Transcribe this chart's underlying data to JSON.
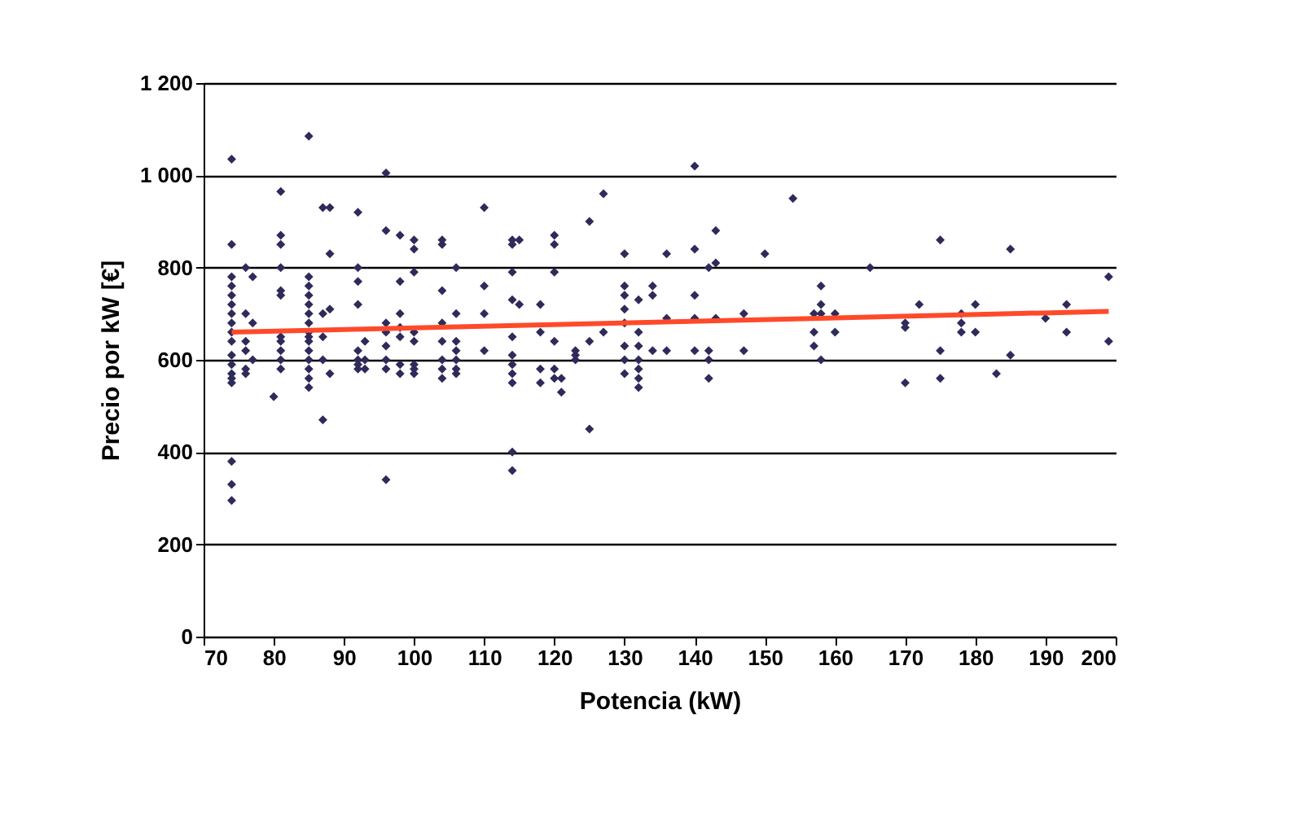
{
  "chart_data": {
    "type": "scatter",
    "xlabel": "Potencia (kW)",
    "ylabel": "Precio por kW [€]",
    "xlim": [
      70,
      200
    ],
    "xticks": [
      70,
      80,
      90,
      100,
      110,
      120,
      130,
      140,
      150,
      160,
      170,
      180,
      190,
      200
    ],
    "ylim": [
      0,
      1200
    ],
    "yticks": [
      0,
      200,
      400,
      600,
      800,
      {
        "value": 1000,
        "label": "1 000"
      },
      {
        "value": 1200,
        "label": "1 200"
      }
    ],
    "grid": "y",
    "series": [
      {
        "marker": "diamond",
        "color": "#2e2a5a",
        "x": [
          74,
          74,
          74,
          74,
          74,
          74,
          74,
          74,
          74,
          74,
          74,
          74,
          74,
          74,
          74,
          74,
          74,
          74,
          76,
          76,
          76,
          76,
          76,
          76,
          77,
          77,
          77,
          80,
          81,
          81,
          81,
          81,
          81,
          81,
          81,
          81,
          81,
          81,
          81,
          85,
          85,
          85,
          85,
          85,
          85,
          85,
          85,
          85,
          85,
          85,
          85,
          85,
          85,
          85,
          87,
          87,
          87,
          87,
          87,
          88,
          88,
          88,
          88,
          92,
          92,
          92,
          92,
          92,
          92,
          92,
          92,
          93,
          93,
          93,
          96,
          96,
          96,
          96,
          96,
          96,
          96,
          96,
          98,
          98,
          98,
          98,
          98,
          98,
          98,
          100,
          100,
          100,
          100,
          100,
          100,
          100,
          100,
          104,
          104,
          104,
          104,
          104,
          104,
          104,
          104,
          106,
          106,
          106,
          106,
          106,
          106,
          106,
          110,
          110,
          110,
          110,
          114,
          114,
          114,
          114,
          114,
          114,
          114,
          114,
          114,
          114,
          114,
          115,
          115,
          118,
          118,
          118,
          118,
          120,
          120,
          120,
          120,
          120,
          120,
          121,
          121,
          123,
          123,
          123,
          125,
          125,
          125,
          127,
          127,
          130,
          130,
          130,
          130,
          130,
          130,
          130,
          130,
          132,
          132,
          132,
          132,
          132,
          132,
          132,
          134,
          134,
          134,
          136,
          136,
          136,
          140,
          140,
          140,
          140,
          140,
          142,
          142,
          142,
          142,
          143,
          143,
          143,
          147,
          147,
          150,
          154,
          157,
          157,
          157,
          158,
          158,
          158,
          158,
          160,
          160,
          165,
          170,
          170,
          170,
          172,
          175,
          175,
          175,
          178,
          178,
          178,
          180,
          180,
          183,
          185,
          185,
          190,
          193,
          193,
          199,
          199
        ],
        "values": [
          1035,
          850,
          780,
          760,
          740,
          720,
          700,
          680,
          660,
          640,
          610,
          590,
          570,
          560,
          550,
          380,
          330,
          295,
          800,
          700,
          640,
          620,
          580,
          570,
          780,
          680,
          600,
          520,
          965,
          870,
          850,
          800,
          750,
          740,
          650,
          640,
          620,
          600,
          580,
          1085,
          780,
          760,
          740,
          720,
          700,
          680,
          660,
          650,
          640,
          620,
          600,
          580,
          560,
          540,
          930,
          700,
          650,
          600,
          470,
          930,
          830,
          710,
          570,
          920,
          800,
          770,
          720,
          620,
          600,
          590,
          580,
          640,
          600,
          580,
          1005,
          880,
          680,
          660,
          630,
          600,
          580,
          340,
          870,
          770,
          700,
          670,
          650,
          590,
          570,
          860,
          840,
          790,
          660,
          640,
          590,
          580,
          570,
          860,
          850,
          750,
          680,
          640,
          600,
          580,
          560,
          800,
          700,
          640,
          620,
          600,
          580,
          570,
          930,
          760,
          700,
          620,
          860,
          850,
          790,
          730,
          650,
          610,
          590,
          570,
          550,
          400,
          360,
          860,
          720,
          720,
          660,
          580,
          550,
          850,
          870,
          790,
          640,
          580,
          560,
          560,
          530,
          620,
          610,
          600,
          900,
          640,
          450,
          960,
          660,
          830,
          760,
          740,
          710,
          680,
          630,
          600,
          570,
          730,
          660,
          630,
          600,
          580,
          560,
          540,
          760,
          740,
          620,
          830,
          690,
          620,
          1020,
          840,
          740,
          690,
          620,
          800,
          620,
          600,
          560,
          880,
          810,
          690,
          700,
          620,
          830,
          950,
          700,
          660,
          630,
          760,
          720,
          700,
          600,
          700,
          660,
          800,
          680,
          670,
          550,
          720,
          860,
          620,
          560,
          700,
          680,
          660,
          720,
          660,
          570,
          840,
          610,
          690,
          720,
          660,
          780,
          640
        ]
      },
      {
        "type": "line",
        "color": "#ff4a2a",
        "x": [
          74,
          199
        ],
        "values": [
          660,
          705
        ]
      }
    ]
  }
}
